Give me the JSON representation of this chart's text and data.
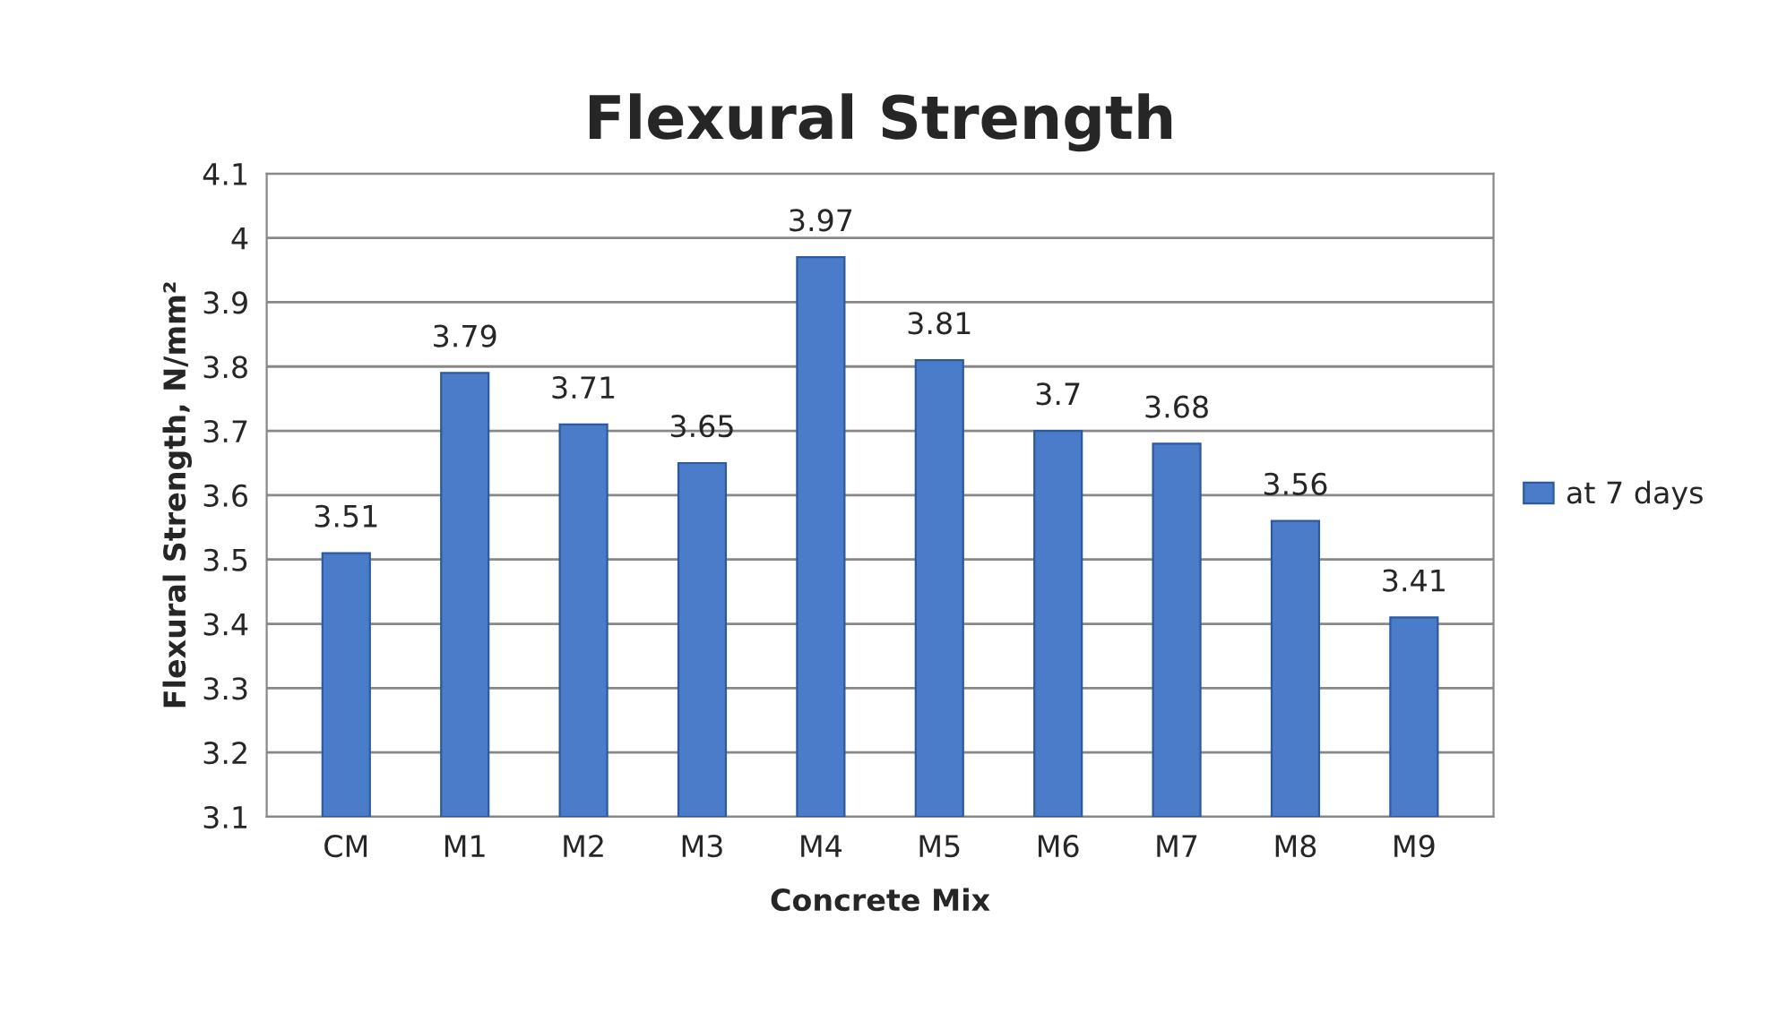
{
  "chart_data": {
    "type": "bar",
    "title": "Flexural Strength",
    "xlabel": "Concrete Mix",
    "ylabel": "Flexural Strength, N/mm²",
    "categories": [
      "CM",
      "M1",
      "M2",
      "M3",
      "M4",
      "M5",
      "M6",
      "M7",
      "M8",
      "M9"
    ],
    "series": [
      {
        "name": "at 7 days",
        "color": "#4a7cc9",
        "values": [
          3.51,
          3.79,
          3.71,
          3.65,
          3.97,
          3.81,
          3.7,
          3.68,
          3.56,
          3.41
        ]
      }
    ],
    "ylim": [
      3.1,
      4.1
    ],
    "yticks": [
      3.1,
      3.2,
      3.3,
      3.4,
      3.5,
      3.6,
      3.7,
      3.8,
      3.9,
      4,
      4.1
    ],
    "grid": "y",
    "legend": "right",
    "data_labels": true
  }
}
